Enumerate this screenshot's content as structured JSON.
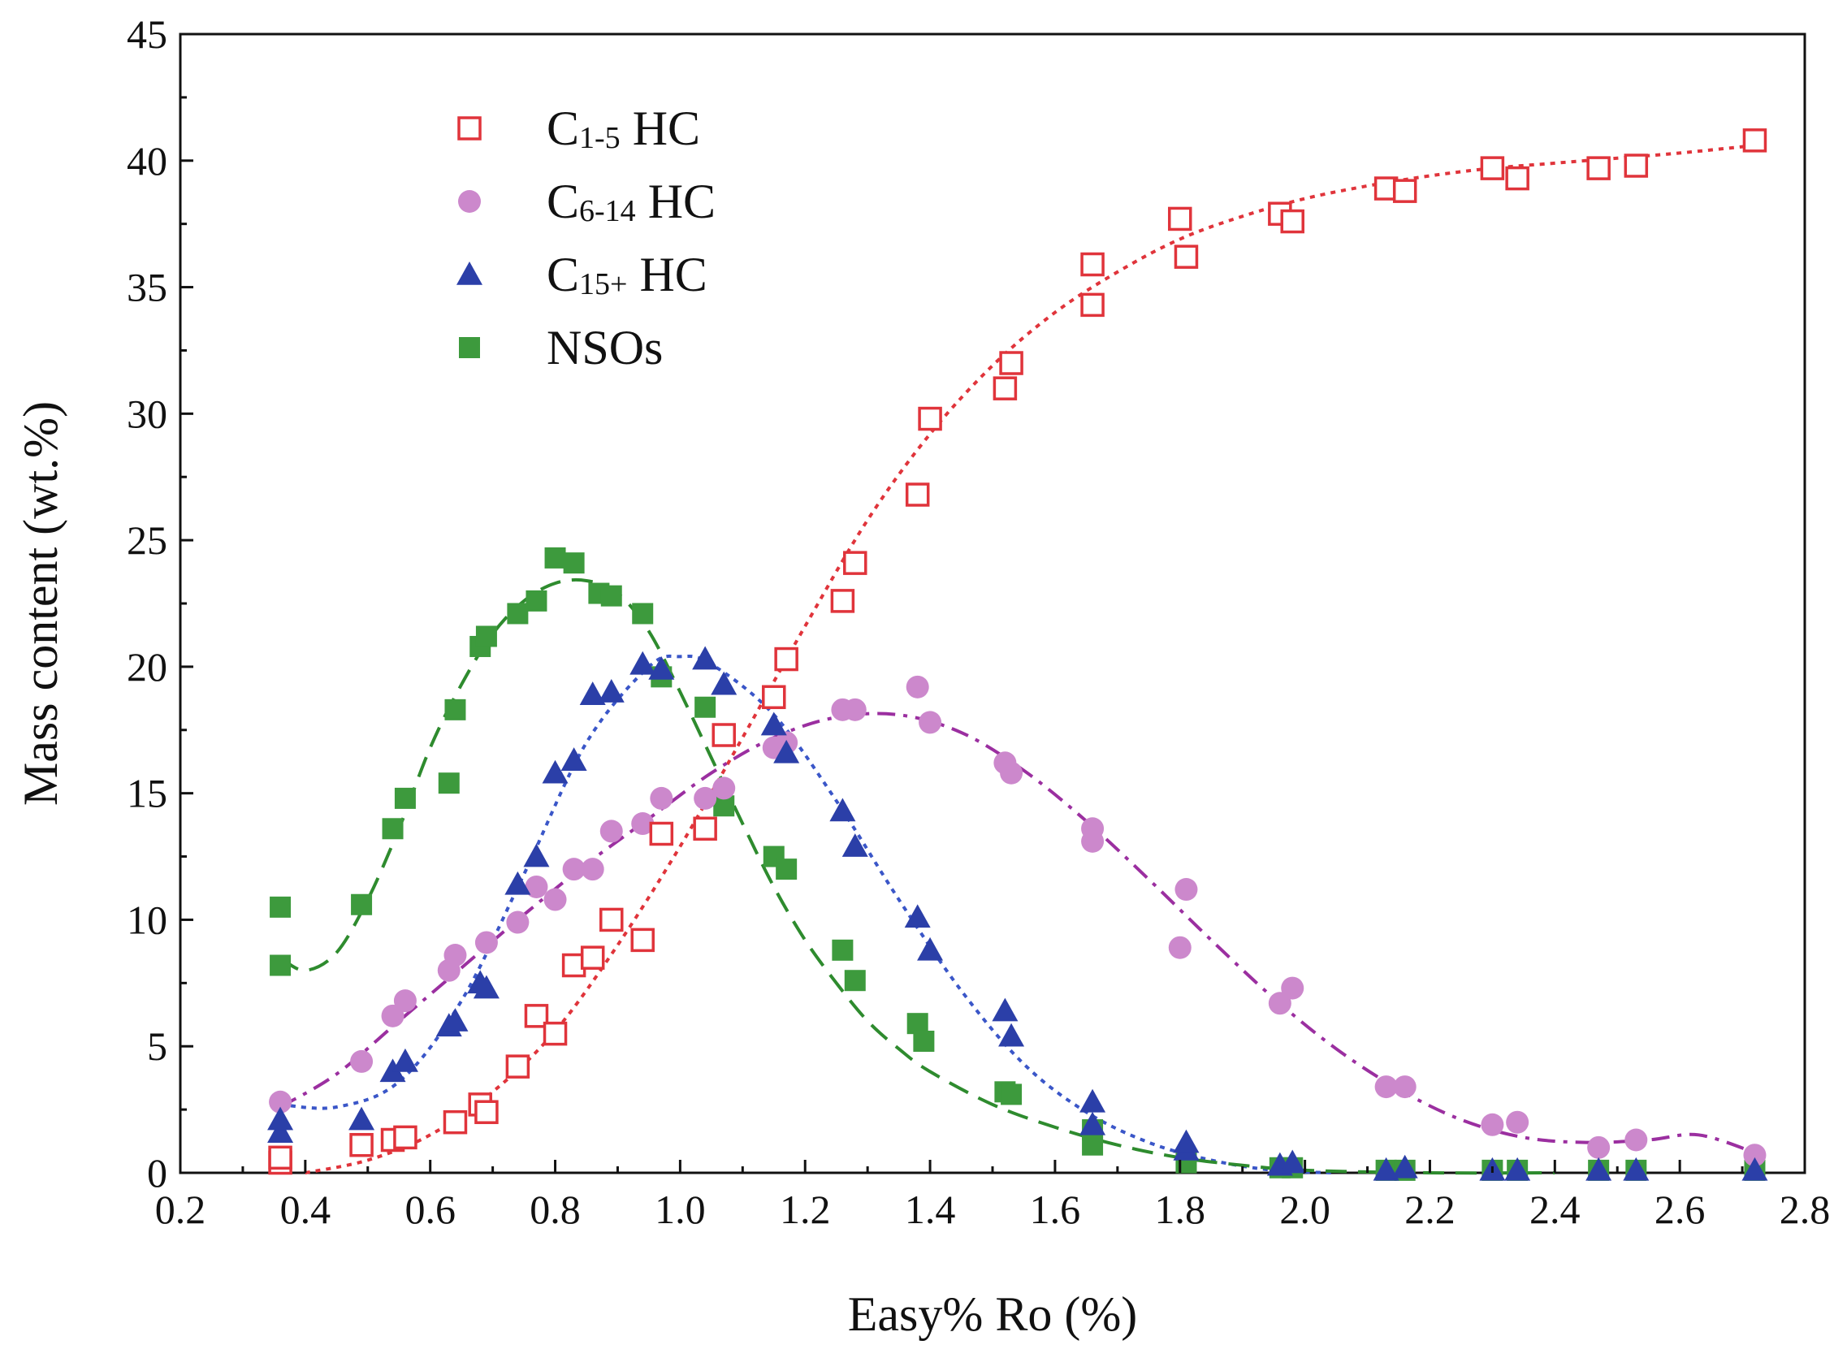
{
  "chart_data": {
    "type": "scatter",
    "xlabel": "Easy% Ro (%)",
    "ylabel": "Mass content (wt.%)",
    "xlim": [
      0.2,
      2.8
    ],
    "ylim": [
      0,
      45
    ],
    "xticks": [
      "0.2",
      "0.4",
      "0.6",
      "0.8",
      "1.0",
      "1.2",
      "1.4",
      "1.6",
      "1.8",
      "2.0",
      "2.2",
      "2.4",
      "2.6",
      "2.8"
    ],
    "yticks": [
      "0",
      "5",
      "10",
      "15",
      "20",
      "25",
      "30",
      "35",
      "40",
      "45"
    ],
    "grid": false,
    "legend_position": "top-left",
    "series": [
      {
        "name_main": "C",
        "name_sub": "1-5",
        "name_suffix": " HC",
        "marker": "open-square",
        "line_style": "dotted",
        "color": "#e0343b",
        "x": [
          0.36,
          0.36,
          0.49,
          0.54,
          0.56,
          0.64,
          0.68,
          0.69,
          0.74,
          0.77,
          0.8,
          0.83,
          0.86,
          0.89,
          0.94,
          0.97,
          1.04,
          1.07,
          1.15,
          1.17,
          1.26,
          1.28,
          1.38,
          1.4,
          1.52,
          1.53,
          1.66,
          1.66,
          1.8,
          1.81,
          1.96,
          1.98,
          2.13,
          2.16,
          2.3,
          2.34,
          2.47,
          2.53,
          2.72
        ],
        "y": [
          0.4,
          0.6,
          1.1,
          1.3,
          1.4,
          2.0,
          2.7,
          2.4,
          4.2,
          6.2,
          5.5,
          8.2,
          8.5,
          10.0,
          9.2,
          13.4,
          13.6,
          17.3,
          18.8,
          20.3,
          22.6,
          24.1,
          26.8,
          29.8,
          31.0,
          32.0,
          34.3,
          35.9,
          37.7,
          36.2,
          37.9,
          37.6,
          38.9,
          38.8,
          39.7,
          39.3,
          39.7,
          39.8,
          40.8
        ],
        "fit_x": [
          0.4,
          0.5,
          0.6,
          0.7,
          0.8,
          0.9,
          1.0,
          1.1,
          1.2,
          1.3,
          1.4,
          1.5,
          1.6,
          1.7,
          1.8,
          1.9,
          2.0,
          2.1,
          2.2,
          2.3,
          2.4,
          2.5,
          2.6,
          2.72
        ],
        "fit_y": [
          0.0,
          0.5,
          1.5,
          3.2,
          5.6,
          9.0,
          12.9,
          17.2,
          21.6,
          25.8,
          29.2,
          31.9,
          34.0,
          35.6,
          36.9,
          37.8,
          38.5,
          39.0,
          39.4,
          39.7,
          39.9,
          40.1,
          40.3,
          40.6
        ]
      },
      {
        "name_main": "C",
        "name_sub": "6-14",
        "name_suffix": " HC",
        "marker": "filled-circle",
        "line_style": "dash-dot",
        "color": "#cc88cc",
        "line_color": "#9b2fa0",
        "x": [
          0.36,
          0.49,
          0.54,
          0.56,
          0.63,
          0.64,
          0.69,
          0.74,
          0.77,
          0.8,
          0.83,
          0.86,
          0.89,
          0.94,
          0.97,
          1.04,
          1.07,
          1.15,
          1.17,
          1.26,
          1.28,
          1.38,
          1.4,
          1.52,
          1.53,
          1.66,
          1.66,
          1.8,
          1.81,
          1.96,
          1.98,
          2.13,
          2.16,
          2.3,
          2.34,
          2.47,
          2.53,
          2.72
        ],
        "y": [
          2.8,
          4.4,
          6.2,
          6.8,
          8.0,
          8.6,
          9.1,
          9.9,
          11.3,
          10.8,
          12.0,
          12.0,
          13.5,
          13.8,
          14.8,
          14.8,
          15.2,
          16.8,
          17.0,
          18.3,
          18.3,
          19.2,
          17.8,
          16.2,
          15.8,
          13.6,
          13.1,
          8.9,
          11.2,
          6.7,
          7.3,
          3.4,
          3.4,
          1.9,
          2.0,
          1.0,
          1.3,
          0.7
        ],
        "fit_x": [
          0.36,
          0.45,
          0.55,
          0.65,
          0.75,
          0.85,
          0.95,
          1.05,
          1.15,
          1.25,
          1.35,
          1.45,
          1.55,
          1.65,
          1.75,
          1.85,
          1.95,
          2.05,
          2.15,
          2.25,
          2.35,
          2.45,
          2.55,
          2.63,
          2.72
        ],
        "fit_y": [
          2.6,
          3.9,
          6.0,
          8.1,
          10.2,
          12.2,
          14.0,
          15.8,
          17.2,
          18.0,
          18.1,
          17.4,
          15.9,
          13.9,
          11.6,
          9.2,
          6.9,
          4.9,
          3.3,
          2.1,
          1.4,
          1.2,
          1.3,
          1.5,
          0.8
        ]
      },
      {
        "name_main": "C",
        "name_sub": "15+",
        "name_suffix": " HC",
        "marker": "filled-triangle",
        "line_style": "dotted",
        "color": "#2b3fa8",
        "line_color": "#3a56c8",
        "x": [
          0.36,
          0.36,
          0.49,
          0.54,
          0.56,
          0.63,
          0.64,
          0.68,
          0.69,
          0.74,
          0.77,
          0.8,
          0.83,
          0.86,
          0.89,
          0.94,
          0.97,
          1.04,
          1.07,
          1.15,
          1.17,
          1.26,
          1.28,
          1.38,
          1.4,
          1.52,
          1.53,
          1.66,
          1.66,
          1.81,
          1.81,
          1.96,
          1.98,
          2.13,
          2.16,
          2.3,
          2.34,
          2.47,
          2.53,
          2.72
        ],
        "y": [
          1.6,
          2.1,
          2.1,
          4.0,
          4.4,
          5.8,
          6.0,
          7.5,
          7.3,
          11.4,
          12.5,
          15.8,
          16.3,
          18.9,
          19.0,
          20.1,
          19.9,
          20.3,
          19.3,
          17.7,
          16.6,
          14.3,
          12.9,
          10.1,
          8.8,
          6.4,
          5.4,
          2.8,
          1.9,
          0.9,
          1.2,
          0.3,
          0.4,
          0.1,
          0.2,
          0.1,
          0.1,
          0.1,
          0.1,
          0.1
        ],
        "fit_x": [
          0.36,
          0.45,
          0.55,
          0.65,
          0.75,
          0.85,
          0.95,
          1.0,
          1.05,
          1.15,
          1.25,
          1.35,
          1.45,
          1.55,
          1.65,
          1.75,
          1.85,
          1.95,
          2.05
        ],
        "fit_y": [
          2.7,
          2.6,
          3.6,
          6.8,
          11.8,
          17.0,
          20.0,
          20.4,
          20.1,
          18.1,
          14.7,
          10.8,
          7.2,
          4.3,
          2.4,
          1.2,
          0.5,
          0.1,
          0.0
        ]
      },
      {
        "name_main": "NSOs",
        "name_sub": "",
        "name_suffix": "",
        "marker": "filled-square",
        "line_style": "dashed",
        "color": "#3d9a3d",
        "line_color": "#2e8b2e",
        "x": [
          0.36,
          0.36,
          0.49,
          0.54,
          0.56,
          0.63,
          0.64,
          0.68,
          0.69,
          0.74,
          0.77,
          0.8,
          0.83,
          0.87,
          0.89,
          0.94,
          0.97,
          1.04,
          1.07,
          1.15,
          1.17,
          1.26,
          1.28,
          1.38,
          1.39,
          1.52,
          1.53,
          1.66,
          1.66,
          1.81,
          1.81,
          1.96,
          1.98,
          2.13,
          2.16,
          2.3,
          2.34,
          2.47,
          2.53,
          2.72
        ],
        "y": [
          10.5,
          8.2,
          10.6,
          13.6,
          14.8,
          15.4,
          18.3,
          20.8,
          21.2,
          22.1,
          22.6,
          24.3,
          24.1,
          22.9,
          22.8,
          22.1,
          19.6,
          18.4,
          14.5,
          12.5,
          12.0,
          8.8,
          7.6,
          5.9,
          5.2,
          3.2,
          3.1,
          1.7,
          1.1,
          0.5,
          0.4,
          0.2,
          0.2,
          0.1,
          0.1,
          0.1,
          0.1,
          0.1,
          0.1,
          0.1
        ],
        "fit_x": [
          0.36,
          0.4,
          0.45,
          0.5,
          0.55,
          0.6,
          0.65,
          0.7,
          0.75,
          0.8,
          0.85,
          0.9,
          0.95,
          1.0,
          1.05,
          1.1,
          1.15,
          1.2,
          1.25,
          1.3,
          1.35,
          1.4,
          1.5,
          1.6,
          1.7,
          1.8,
          1.9,
          2.0,
          2.2,
          2.4
        ],
        "fit_y": [
          8.5,
          8.0,
          8.7,
          10.8,
          13.6,
          16.8,
          19.3,
          21.3,
          22.6,
          23.3,
          23.4,
          22.9,
          21.4,
          19.0,
          16.4,
          13.8,
          11.3,
          9.2,
          7.5,
          6.0,
          4.9,
          4.0,
          2.7,
          1.8,
          1.1,
          0.6,
          0.3,
          0.1,
          0.0,
          0.0
        ]
      }
    ]
  }
}
